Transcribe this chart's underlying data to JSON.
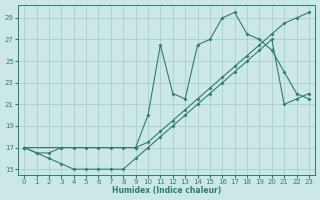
{
  "xlabel": "Humidex (Indice chaleur)",
  "ylabel": "",
  "xlim": [
    -0.5,
    23.5
  ],
  "ylim": [
    14.5,
    30.2
  ],
  "xticks": [
    0,
    1,
    2,
    3,
    4,
    5,
    6,
    7,
    8,
    9,
    10,
    11,
    12,
    13,
    14,
    15,
    16,
    17,
    18,
    19,
    20,
    21,
    22,
    23
  ],
  "yticks": [
    15,
    17,
    19,
    21,
    23,
    25,
    27,
    29
  ],
  "bg_color": "#cce8e6",
  "grid_color": "#aacfcc",
  "line_color": "#2e7d6e",
  "line1_x": [
    0,
    1,
    2,
    3,
    4,
    5,
    6,
    7,
    8,
    9,
    10,
    11,
    12,
    13,
    14,
    15,
    16,
    17,
    18,
    19,
    20,
    21,
    22,
    23
  ],
  "line1_y": [
    17,
    16.5,
    16.5,
    17,
    17,
    17,
    17,
    17,
    17,
    17,
    17.5,
    18.5,
    19.5,
    20.5,
    21.5,
    22.5,
    23.5,
    24.5,
    25.5,
    26.5,
    27.5,
    28.5,
    29,
    29.5
  ],
  "line2_x": [
    0,
    1,
    2,
    3,
    4,
    5,
    6,
    7,
    8,
    9,
    10,
    11,
    12,
    13,
    14,
    15,
    16,
    17,
    18,
    19,
    20,
    21,
    22,
    23
  ],
  "line2_y": [
    17,
    16.5,
    16,
    15.5,
    15,
    15,
    15,
    15,
    15,
    16,
    17,
    18,
    19,
    20,
    21,
    22,
    23,
    24,
    25,
    26,
    27,
    21,
    21.5,
    22
  ],
  "line3_x": [
    0,
    3,
    9,
    10,
    11,
    12,
    13,
    14,
    15,
    16,
    17,
    18,
    19,
    20,
    21,
    22,
    23
  ],
  "line3_y": [
    17,
    17,
    17,
    20,
    26.5,
    22,
    21.5,
    26.5,
    27,
    29,
    29.5,
    27.5,
    27,
    26,
    24,
    22,
    21.5
  ]
}
